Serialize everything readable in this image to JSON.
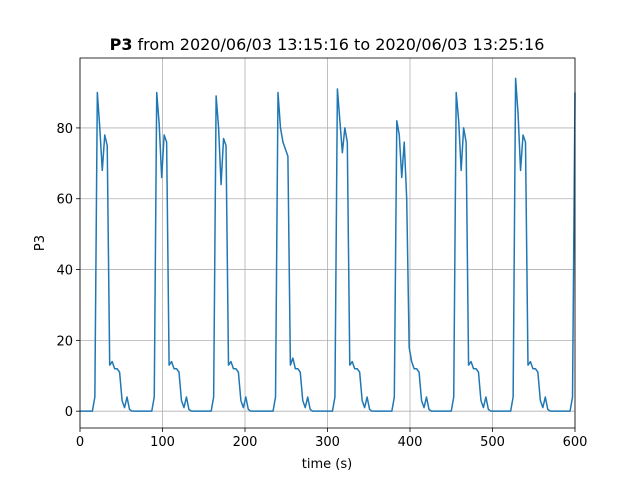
{
  "chart_data": {
    "type": "line",
    "title": "P3",
    "title_suffix": "from 2020/06/03 13:15:16 to 2020/06/03 13:25:16",
    "xlabel": "time (s)",
    "ylabel": "P3",
    "color": "#1f77b4",
    "grid": true,
    "xlim": [
      0,
      600
    ],
    "xticks": [
      0,
      100,
      200,
      300,
      400,
      500,
      600
    ],
    "ylim": [
      -4.75,
      99.75
    ],
    "yticks": [
      0,
      20,
      40,
      60,
      80
    ],
    "x": [
      0,
      3,
      6,
      9,
      12,
      15,
      18,
      21,
      24,
      27,
      30,
      33,
      36,
      39,
      42,
      45,
      48,
      51,
      54,
      57,
      60,
      63,
      66,
      69,
      72,
      75,
      78,
      81,
      84,
      87,
      90,
      93,
      96,
      99,
      102,
      105,
      108,
      111,
      114,
      117,
      120,
      123,
      126,
      129,
      132,
      135,
      138,
      141,
      144,
      147,
      150,
      153,
      156,
      159,
      162,
      165,
      168,
      171,
      174,
      177,
      180,
      183,
      186,
      189,
      192,
      195,
      198,
      201,
      204,
      207,
      210,
      213,
      216,
      219,
      222,
      225,
      228,
      231,
      234,
      237,
      240,
      243,
      246,
      249,
      252,
      255,
      258,
      261,
      264,
      267,
      270,
      273,
      276,
      279,
      282,
      285,
      288,
      291,
      294,
      297,
      300,
      303,
      306,
      309,
      312,
      315,
      318,
      321,
      324,
      327,
      330,
      333,
      336,
      339,
      342,
      345,
      348,
      351,
      354,
      357,
      360,
      363,
      366,
      369,
      372,
      375,
      378,
      381,
      384,
      387,
      390,
      393,
      396,
      399,
      402,
      405,
      408,
      411,
      414,
      417,
      420,
      423,
      426,
      429,
      432,
      435,
      438,
      441,
      444,
      447,
      450,
      453,
      456,
      459,
      462,
      465,
      468,
      471,
      474,
      477,
      480,
      483,
      486,
      489,
      492,
      495,
      498,
      501,
      504,
      507,
      510,
      513,
      516,
      519,
      522,
      525,
      528,
      531,
      534,
      537,
      540,
      543,
      546,
      549,
      552,
      555,
      558,
      561,
      564,
      567,
      570,
      573,
      576,
      579,
      582,
      585,
      588,
      591,
      594,
      597,
      600
    ],
    "values": [
      0,
      0,
      0,
      0,
      0,
      0,
      4,
      90,
      80,
      68,
      78,
      75,
      13,
      14,
      12,
      12,
      11,
      3,
      1,
      4,
      0.5,
      0,
      0,
      0,
      0,
      0,
      0,
      0,
      0,
      0,
      4,
      90,
      81,
      66,
      78,
      76,
      13,
      14,
      12,
      12,
      11,
      3,
      1,
      4,
      0.5,
      0,
      0,
      0,
      0,
      0,
      0,
      0,
      0,
      0,
      4,
      89,
      80,
      64,
      77,
      75,
      13,
      14,
      12,
      12,
      11,
      3,
      1,
      4,
      0.5,
      0,
      0,
      0,
      0,
      0,
      0,
      0,
      0,
      0,
      0,
      4,
      90,
      80,
      76,
      74,
      72,
      13,
      15,
      12,
      12,
      11,
      3,
      1,
      4,
      0.5,
      0,
      0,
      0,
      0,
      0,
      0,
      0,
      0,
      0,
      4,
      91,
      82,
      73,
      80,
      76,
      13,
      14,
      12,
      12,
      11,
      3,
      1,
      4,
      0.5,
      0,
      0,
      0,
      0,
      0,
      0,
      0,
      0,
      0,
      4,
      82,
      78,
      66,
      76,
      60,
      18,
      14,
      12,
      12,
      11,
      3,
      1,
      4,
      0.5,
      0,
      0,
      0,
      0,
      0,
      0,
      0,
      0,
      0,
      4,
      90,
      82,
      68,
      80,
      76,
      13,
      14,
      12,
      12,
      11,
      3,
      1,
      4,
      0.5,
      0,
      0,
      0,
      0,
      0,
      0,
      0,
      0,
      0,
      4,
      94,
      84,
      68,
      78,
      76,
      13,
      14,
      12,
      12,
      11,
      3,
      1,
      4,
      0.5,
      0,
      0,
      0,
      0,
      0,
      0,
      0,
      0,
      0,
      4,
      90
    ]
  }
}
